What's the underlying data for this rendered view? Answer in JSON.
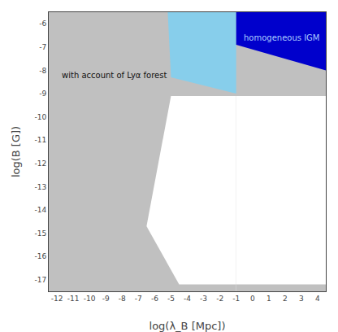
{
  "chart_data": {
    "type": "region",
    "xlabel": "log(λ_B [Mpc])",
    "ylabel": "log(B [G])",
    "xlim": [
      -12.5,
      4.5
    ],
    "ylim": [
      -17.5,
      -5.5
    ],
    "xticks": [
      -12,
      -11,
      -10,
      -9,
      -8,
      -7,
      -6,
      -5,
      -4,
      -3,
      -2,
      -1,
      0,
      1,
      2,
      3,
      4
    ],
    "yticks": [
      -6,
      -7,
      -8,
      -9,
      -10,
      -11,
      -12,
      -13,
      -14,
      -15,
      -16,
      -17
    ],
    "grid": false,
    "series": [
      {
        "color": "#c0c0c0",
        "x": [
          -12.5,
          4.5,
          4.5,
          -12.5
        ],
        "values": [
          -5.5,
          -5.5,
          -17.5,
          -17.5
        ]
      },
      {
        "color": "#ffffff",
        "x": [
          -1.0,
          4.5,
          4.5,
          -1.0
        ],
        "values": [
          -9.1,
          -9.1,
          -17.5,
          -17.5
        ]
      },
      {
        "color": "#ffffff",
        "x": [
          -6.5,
          -5.0,
          -1.0,
          -1.0,
          -4.5
        ],
        "values": [
          -14.7,
          -9.1,
          -9.1,
          -17.2,
          -17.2
        ]
      },
      {
        "color": "#c0c0c0",
        "x": [
          -1.0,
          4.5,
          4.5,
          -1.0
        ],
        "values": [
          -17.2,
          -17.2,
          -17.5,
          -17.5
        ]
      },
      {
        "color": "#c0c0c0",
        "x": [
          -1.0,
          4.5,
          4.5,
          -1.0
        ],
        "values": [
          -6.9,
          -8.0,
          -9.1,
          -9.1
        ]
      },
      {
        "color": "#87ceeb",
        "x": [
          -12.5,
          -5.2,
          -5.0,
          -1.0,
          -1.0,
          -12.5
        ],
        "values": [
          -5.5,
          -5.5,
          -8.3,
          -9.0,
          -5.5,
          -5.5
        ]
      },
      {
        "color": "#0000cc",
        "x": [
          -1.0,
          4.5,
          4.5,
          -1.0,
          -1.0
        ],
        "values": [
          -5.5,
          -5.5,
          -8.0,
          -6.9,
          -5.5
        ]
      }
    ],
    "annotations": [
      {
        "text": "with account of Lyα forest",
        "x": -8.5,
        "y": -8.2,
        "color": "#111111"
      },
      {
        "text": "homogeneous IGM",
        "x": 1.8,
        "y": -6.6,
        "color": "#aaccff"
      }
    ]
  }
}
